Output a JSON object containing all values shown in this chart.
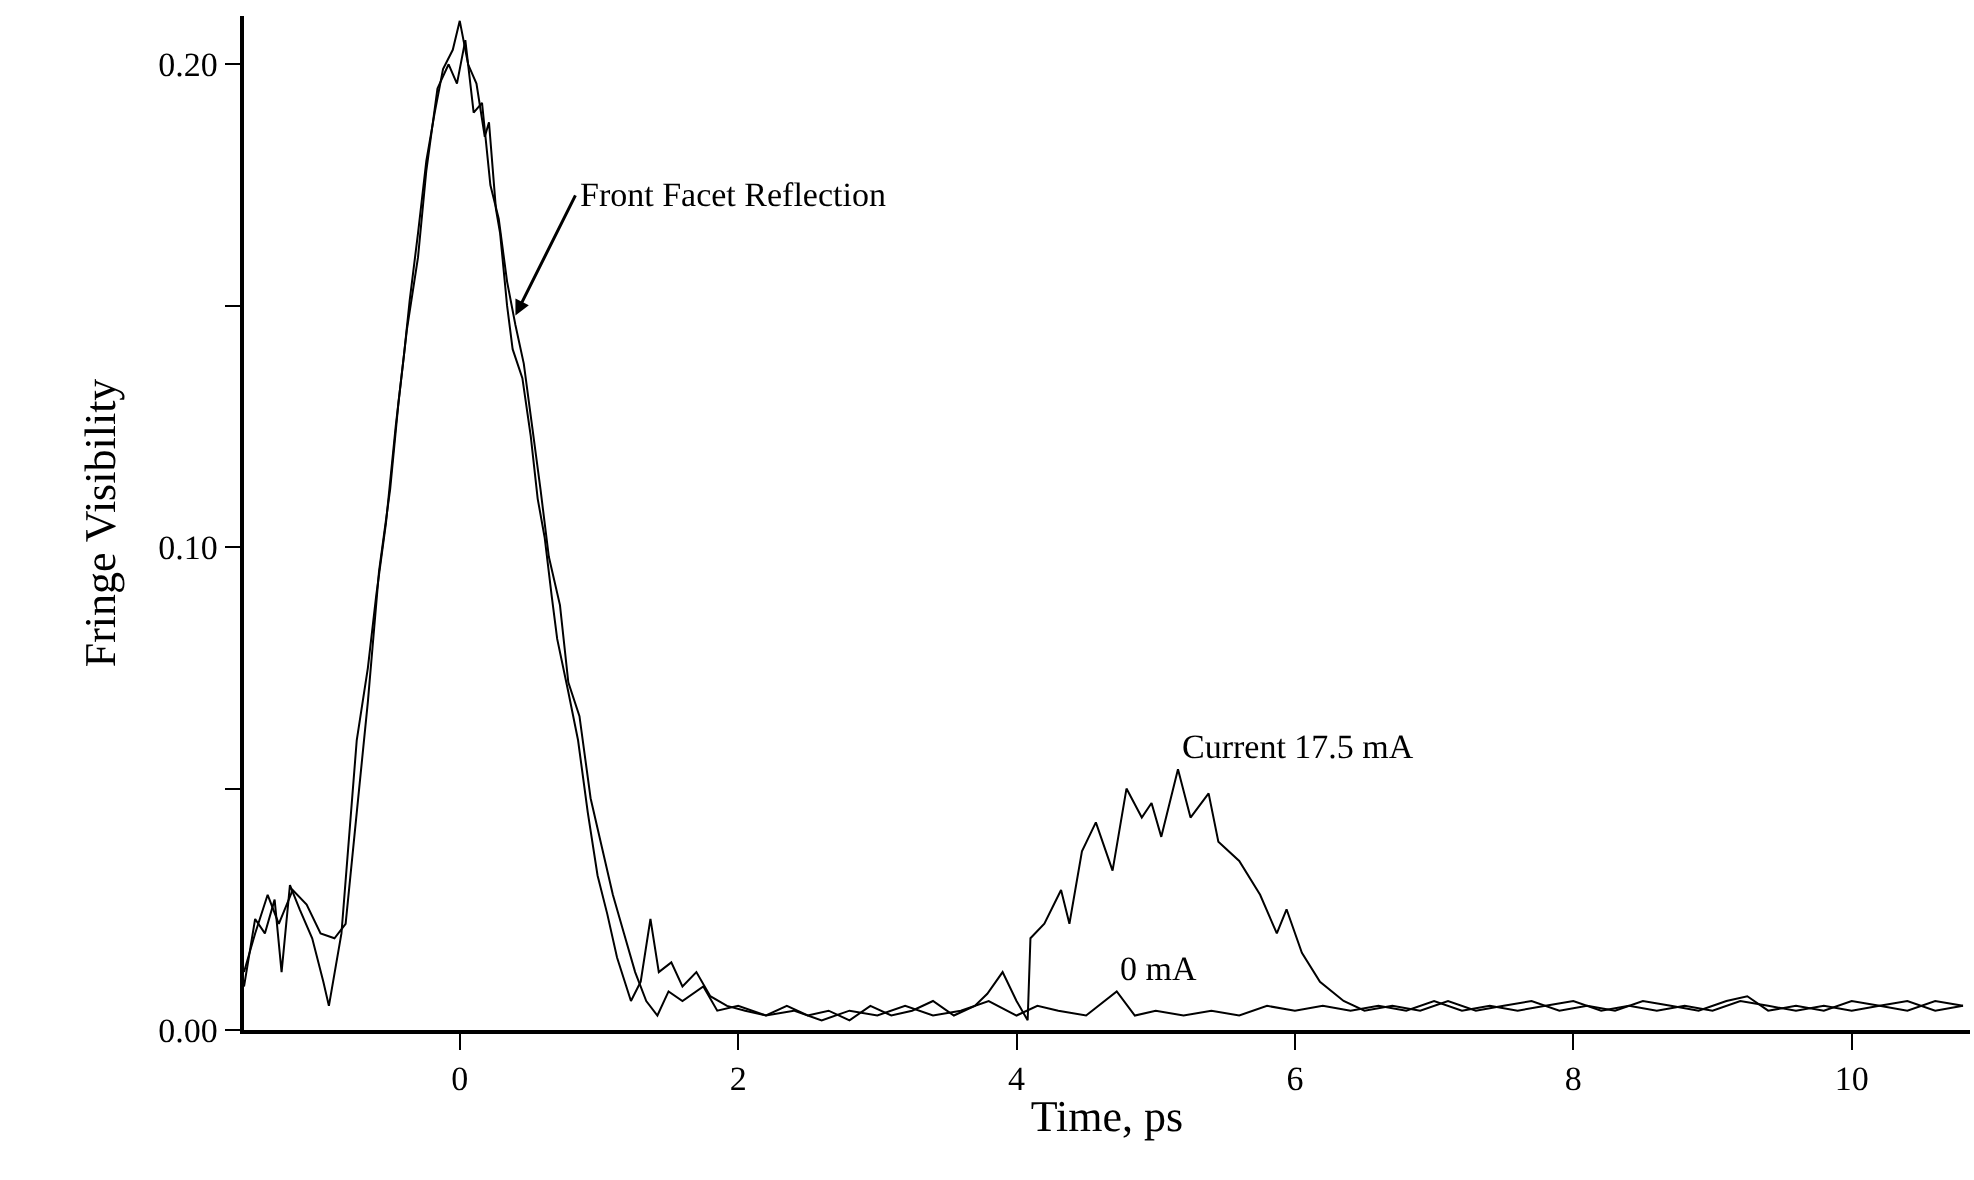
{
  "chart_data": {
    "type": "line",
    "xlabel": "Time, ps",
    "ylabel": "Fringe Visibility",
    "xlim": [
      -1.55,
      10.85
    ],
    "ylim": [
      0,
      0.21
    ],
    "xticks": [
      0,
      2,
      4,
      6,
      8,
      10
    ],
    "yticks": [
      {
        "value": 0,
        "label": "0.00"
      },
      {
        "value": 0.05,
        "label": null
      },
      {
        "value": 0.1,
        "label": "0.10"
      },
      {
        "value": 0.15,
        "label": null
      },
      {
        "value": 0.2,
        "label": "0.20"
      }
    ],
    "legend": false,
    "marker": "none",
    "line_style": "solid",
    "annotations": [
      {
        "text": "Front Facet Reflection",
        "x": 0.4,
        "y": 0.148
      }
    ],
    "series": [
      {
        "name": "Current 17.5 mA",
        "color": "#000000",
        "x": [
          -1.55,
          -1.47,
          -1.4,
          -1.33,
          -1.28,
          -1.22,
          -1.15,
          -1.06,
          -0.98,
          -0.94,
          -0.85,
          -0.74,
          -0.66,
          -0.6,
          -0.53,
          -0.46,
          -0.4,
          -0.36,
          -0.3,
          -0.24,
          -0.18,
          -0.12,
          -0.05,
          0.0,
          0.06,
          0.12,
          0.18,
          0.21,
          0.26,
          0.29,
          0.34,
          0.38,
          0.45,
          0.51,
          0.56,
          0.61,
          0.66,
          0.7,
          0.78,
          0.85,
          0.92,
          0.99,
          1.06,
          1.13,
          1.23,
          1.3,
          1.37,
          1.43,
          1.52,
          1.6,
          1.7,
          1.8,
          1.92,
          2.05,
          2.2,
          2.35,
          2.5,
          2.65,
          2.8,
          2.95,
          3.1,
          3.25,
          3.4,
          3.55,
          3.7,
          3.79,
          3.9,
          4.0,
          4.08,
          4.1,
          4.2,
          4.32,
          4.38,
          4.47,
          4.57,
          4.69,
          4.79,
          4.9,
          4.97,
          5.04,
          5.16,
          5.25,
          5.38,
          5.45,
          5.6,
          5.75,
          5.87,
          5.94,
          6.05,
          6.18,
          6.35,
          6.5,
          6.7,
          6.9,
          7.1,
          7.3,
          7.5,
          7.7,
          7.9,
          8.1,
          8.3,
          8.5,
          8.7,
          8.9,
          9.1,
          9.25,
          9.4,
          9.6,
          9.8,
          10.0,
          10.2,
          10.4,
          10.6,
          10.8
        ],
        "values": [
          0.009,
          0.023,
          0.02,
          0.027,
          0.012,
          0.03,
          0.025,
          0.019,
          0.01,
          0.005,
          0.02,
          0.06,
          0.075,
          0.09,
          0.105,
          0.125,
          0.14,
          0.151,
          0.165,
          0.18,
          0.19,
          0.199,
          0.203,
          0.209,
          0.2,
          0.196,
          0.185,
          0.188,
          0.17,
          0.165,
          0.15,
          0.141,
          0.135,
          0.123,
          0.11,
          0.102,
          0.09,
          0.081,
          0.07,
          0.06,
          0.045,
          0.032,
          0.024,
          0.015,
          0.006,
          0.01,
          0.023,
          0.012,
          0.014,
          0.009,
          0.012,
          0.007,
          0.005,
          0.004,
          0.003,
          0.005,
          0.003,
          0.004,
          0.002,
          0.005,
          0.003,
          0.004,
          0.006,
          0.003,
          0.005,
          0.0075,
          0.012,
          0.006,
          0.002,
          0.019,
          0.022,
          0.029,
          0.022,
          0.037,
          0.043,
          0.033,
          0.05,
          0.044,
          0.047,
          0.04,
          0.054,
          0.044,
          0.049,
          0.039,
          0.035,
          0.028,
          0.02,
          0.025,
          0.016,
          0.01,
          0.006,
          0.004,
          0.005,
          0.004,
          0.006,
          0.004,
          0.005,
          0.006,
          0.004,
          0.005,
          0.004,
          0.006,
          0.005,
          0.004,
          0.006,
          0.007,
          0.004,
          0.005,
          0.004,
          0.006,
          0.005,
          0.004,
          0.006,
          0.005
        ]
      },
      {
        "name": "0 mA",
        "color": "#000000",
        "x": [
          -1.55,
          -1.47,
          -1.38,
          -1.3,
          -1.2,
          -1.1,
          -1.0,
          -0.9,
          -0.82,
          -0.74,
          -0.66,
          -0.58,
          -0.5,
          -0.44,
          -0.38,
          -0.3,
          -0.24,
          -0.16,
          -0.08,
          -0.02,
          0.04,
          0.1,
          0.16,
          0.22,
          0.28,
          0.34,
          0.4,
          0.46,
          0.52,
          0.58,
          0.64,
          0.72,
          0.78,
          0.86,
          0.94,
          1.02,
          1.1,
          1.18,
          1.26,
          1.34,
          1.42,
          1.5,
          1.6,
          1.75,
          1.85,
          2.0,
          2.2,
          2.4,
          2.6,
          2.8,
          3.0,
          3.2,
          3.4,
          3.6,
          3.8,
          4.0,
          4.15,
          4.3,
          4.5,
          4.72,
          4.85,
          5.0,
          5.2,
          5.4,
          5.6,
          5.8,
          6.0,
          6.2,
          6.4,
          6.6,
          6.8,
          7.0,
          7.2,
          7.4,
          7.6,
          7.8,
          8.0,
          8.2,
          8.4,
          8.6,
          8.8,
          9.0,
          9.2,
          9.4,
          9.6,
          9.8,
          10.0,
          10.2,
          10.4,
          10.6,
          10.8
        ],
        "values": [
          0.012,
          0.02,
          0.028,
          0.022,
          0.029,
          0.026,
          0.02,
          0.019,
          0.022,
          0.045,
          0.068,
          0.095,
          0.112,
          0.13,
          0.145,
          0.16,
          0.178,
          0.195,
          0.2,
          0.196,
          0.205,
          0.19,
          0.192,
          0.175,
          0.168,
          0.155,
          0.146,
          0.138,
          0.125,
          0.112,
          0.098,
          0.088,
          0.072,
          0.065,
          0.048,
          0.038,
          0.028,
          0.02,
          0.012,
          0.006,
          0.003,
          0.008,
          0.006,
          0.009,
          0.004,
          0.005,
          0.003,
          0.004,
          0.002,
          0.004,
          0.003,
          0.005,
          0.003,
          0.004,
          0.006,
          0.003,
          0.005,
          0.004,
          0.003,
          0.008,
          0.003,
          0.004,
          0.003,
          0.004,
          0.003,
          0.005,
          0.004,
          0.005,
          0.004,
          0.005,
          0.004,
          0.006,
          0.004,
          0.005,
          0.004,
          0.005,
          0.006,
          0.004,
          0.005,
          0.004,
          0.005,
          0.004,
          0.006,
          0.005,
          0.004,
          0.005,
          0.004,
          0.005,
          0.006,
          0.004,
          0.005
        ]
      }
    ]
  }
}
